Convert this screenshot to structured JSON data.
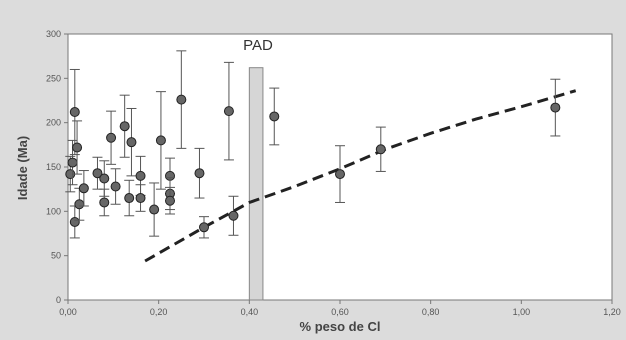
{
  "chart_data": {
    "type": "scatter",
    "title": "",
    "xlabel": "% peso de Cl",
    "ylabel": "Idade (Ma)",
    "xlim": [
      0,
      1.2
    ],
    "ylim": [
      0,
      300
    ],
    "x_ticks": [
      "0,00",
      "0,20",
      "0,40",
      "0,60",
      "0,80",
      "1,00",
      "1,20"
    ],
    "y_ticks": [
      "0",
      "50",
      "100",
      "150",
      "200",
      "250",
      "300"
    ],
    "grid": false,
    "annotation": {
      "label": "PAD",
      "x_range": [
        0.4,
        0.43
      ]
    },
    "trend_line": {
      "style": "dashed",
      "points": [
        [
          0.17,
          44
        ],
        [
          0.3,
          82
        ],
        [
          0.4,
          110
        ],
        [
          0.5,
          128
        ],
        [
          0.6,
          148
        ],
        [
          0.7,
          170
        ],
        [
          0.8,
          188
        ],
        [
          0.9,
          204
        ],
        [
          1.0,
          218
        ],
        [
          1.12,
          236
        ]
      ]
    },
    "points": [
      {
        "x": 0.005,
        "y": 142,
        "err": 20
      },
      {
        "x": 0.01,
        "y": 155,
        "err": 25
      },
      {
        "x": 0.015,
        "y": 212,
        "err": 48
      },
      {
        "x": 0.015,
        "y": 88,
        "err": 18
      },
      {
        "x": 0.02,
        "y": 172,
        "err": 30
      },
      {
        "x": 0.025,
        "y": 108,
        "err": 18
      },
      {
        "x": 0.035,
        "y": 126,
        "err": 20
      },
      {
        "x": 0.065,
        "y": 143,
        "err": 18
      },
      {
        "x": 0.08,
        "y": 110,
        "err": 15
      },
      {
        "x": 0.08,
        "y": 137,
        "err": 20
      },
      {
        "x": 0.095,
        "y": 183,
        "err": 30
      },
      {
        "x": 0.105,
        "y": 128,
        "err": 20
      },
      {
        "x": 0.125,
        "y": 196,
        "err": 35
      },
      {
        "x": 0.135,
        "y": 115,
        "err": 20
      },
      {
        "x": 0.14,
        "y": 178,
        "err": 38
      },
      {
        "x": 0.16,
        "y": 140,
        "err": 22
      },
      {
        "x": 0.16,
        "y": 115,
        "err": 15
      },
      {
        "x": 0.19,
        "y": 102,
        "err": 30
      },
      {
        "x": 0.205,
        "y": 180,
        "err": 55
      },
      {
        "x": 0.225,
        "y": 140,
        "err": 20
      },
      {
        "x": 0.225,
        "y": 120,
        "err": 18
      },
      {
        "x": 0.225,
        "y": 112,
        "err": 15
      },
      {
        "x": 0.25,
        "y": 226,
        "err": 55
      },
      {
        "x": 0.29,
        "y": 143,
        "err": 28
      },
      {
        "x": 0.3,
        "y": 82,
        "err": 12
      },
      {
        "x": 0.355,
        "y": 213,
        "err": 55
      },
      {
        "x": 0.365,
        "y": 95,
        "err": 22
      },
      {
        "x": 0.455,
        "y": 207,
        "err": 32
      },
      {
        "x": 0.6,
        "y": 142,
        "err": 32
      },
      {
        "x": 0.69,
        "y": 170,
        "err": 25
      },
      {
        "x": 1.075,
        "y": 217,
        "err": 32
      }
    ]
  }
}
